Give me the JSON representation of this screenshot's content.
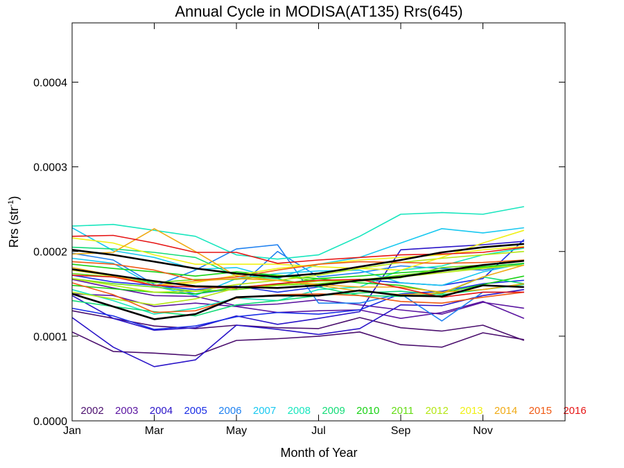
{
  "chart_data": {
    "type": "line",
    "title": "Annual Cycle in MODISA(AT135) Rrs(645)",
    "xlabel": "Month of Year",
    "ylabel_main": "Rrs (str",
    "ylabel_sup": "-1",
    "ylabel_close": ")",
    "xlim": [
      1,
      13
    ],
    "ylim": [
      0,
      0.00047
    ],
    "x_ticks": [
      {
        "value": 1,
        "label": "Jan"
      },
      {
        "value": 3,
        "label": "Mar"
      },
      {
        "value": 5,
        "label": "May"
      },
      {
        "value": 7,
        "label": "Jul"
      },
      {
        "value": 9,
        "label": "Sep"
      },
      {
        "value": 11,
        "label": "Nov"
      }
    ],
    "y_ticks": [
      {
        "value": 0.0,
        "label": "0.0000"
      },
      {
        "value": 0.0001,
        "label": "0.0001"
      },
      {
        "value": 0.0002,
        "label": "0.0002"
      },
      {
        "value": 0.0003,
        "label": "0.0003"
      },
      {
        "value": 0.0004,
        "label": "0.0004"
      }
    ],
    "grid": false,
    "legend_position": "bottom inside plot",
    "x": [
      1,
      2,
      3,
      4,
      5,
      6,
      7,
      8,
      9,
      10,
      11,
      12
    ],
    "series": [
      {
        "name": "2002",
        "color": "#4b0f6e",
        "lines": [
          [
            0.000105,
            8.2e-05,
            8e-05,
            7.7e-05,
            9.5e-05,
            9.7e-05,
            0.0001,
            0.000105,
            9e-05,
            8.7e-05,
            0.000104,
            9.6e-05
          ],
          [
            0.00013,
            0.000121,
            0.000112,
            0.000109,
            0.000113,
            0.00011,
            0.000109,
            0.000122,
            0.00011,
            0.000106,
            0.000113,
            9.5e-05
          ]
        ]
      },
      {
        "name": "2003",
        "color": "#5a14a0",
        "lines": [
          [
            0.00015,
            0.000148,
            0.000135,
            0.000139,
            0.000135,
            0.000128,
            0.00013,
            0.000131,
            0.000121,
            0.000128,
            0.000141,
            0.000121
          ],
          [
            0.000167,
            0.000157,
            0.000148,
            0.000147,
            0.000136,
            0.000138,
            0.000143,
            0.000137,
            0.000131,
            0.000126,
            0.00014,
            0.000133
          ]
        ]
      },
      {
        "name": "2004",
        "color": "#2a14c8",
        "lines": [
          [
            0.000122,
            8.7e-05,
            6.4e-05,
            7.2e-05,
            0.000113,
            0.000108,
            0.000102,
            0.000109,
            0.000137,
            0.000136,
            0.000148,
            0.000155
          ],
          [
            0.000148,
            0.000121,
            0.000107,
            0.00011,
            0.000124,
            0.000114,
            0.000121,
            0.000129,
            0.000202,
            0.000205,
            0.000208,
            0.000212
          ]
        ]
      },
      {
        "name": "2005",
        "color": "#1a2ee6",
        "lines": [
          [
            0.000133,
            0.000124,
            0.000108,
            0.000112,
            0.000123,
            0.000128,
            0.000126,
            0.000131,
            0.00015,
            0.000153,
            0.000162,
            0.000166
          ],
          [
            0.000172,
            0.000164,
            0.00016,
            0.000155,
            0.000159,
            0.000152,
            0.000158,
            0.000167,
            0.000163,
            0.00016,
            0.000168,
            0.000214
          ]
        ]
      },
      {
        "name": "2006",
        "color": "#1e80f0",
        "lines": [
          [
            0.000178,
            0.000172,
            0.000159,
            0.000178,
            0.000203,
            0.000208,
            0.000139,
            0.000139,
            0.00015,
            0.000118,
            0.000152,
            0.000152
          ],
          [
            0.000198,
            0.00019,
            0.000161,
            0.00015,
            0.000156,
            0.0002,
            0.00017,
            0.000175,
            0.000183,
            0.00018,
            0.000178,
            0.000186
          ]
        ]
      },
      {
        "name": "2007",
        "color": "#18c8f0",
        "lines": [
          [
            0.000228,
            0.000201,
            0.000193,
            0.000179,
            0.000181,
            0.000168,
            0.000185,
            0.000193,
            0.00021,
            0.000227,
            0.000222,
            0.000228
          ],
          [
            0.000192,
            0.000186,
            0.000159,
            0.000148,
            0.000168,
            0.000174,
            0.000177,
            0.000178,
            0.000163,
            0.00016,
            0.000176,
            0.000186
          ]
        ]
      },
      {
        "name": "2008",
        "color": "#18e6be",
        "lines": [
          [
            0.00023,
            0.000232,
            0.000225,
            0.000218,
            0.000196,
            0.000191,
            0.000196,
            0.000218,
            0.000244,
            0.000246,
            0.000244,
            0.000253
          ],
          [
            0.000155,
            0.000142,
            0.000126,
            0.000133,
            0.000145,
            0.000142,
            0.000155,
            0.000158,
            0.000178,
            0.000183,
            0.000196,
            0.000204
          ]
        ]
      },
      {
        "name": "2009",
        "color": "#14dc78",
        "lines": [
          [
            0.000205,
            0.000203,
            0.000199,
            0.000193,
            0.000171,
            0.000168,
            0.000158,
            0.000148,
            0.000147,
            0.00015,
            0.00017,
            0.000162
          ],
          [
            0.000142,
            0.000135,
            0.000129,
            0.000124,
            0.000137,
            0.000142,
            0.000148,
            0.000151,
            0.000153,
            0.000149,
            0.000155,
            0.000161
          ]
        ]
      },
      {
        "name": "2010",
        "color": "#18d214",
        "lines": [
          [
            0.000185,
            0.00018,
            0.000176,
            0.000171,
            0.000176,
            0.000172,
            0.000168,
            0.000163,
            0.00016,
            0.000151,
            0.000161,
            0.000171
          ],
          [
            0.00016,
            0.000156,
            0.000152,
            0.00015,
            0.000158,
            0.000161,
            0.000168,
            0.000171,
            0.000175,
            0.000178,
            0.000182,
            0.000186
          ]
        ]
      },
      {
        "name": "2011",
        "color": "#64dc14",
        "lines": [
          [
            0.000174,
            0.00017,
            0.000163,
            0.000167,
            0.000167,
            0.000172,
            0.000165,
            0.000165,
            0.000169,
            0.000181,
            0.000184,
            0.00019
          ],
          [
            0.000168,
            0.000162,
            0.000158,
            0.000153,
            0.000155,
            0.00016,
            0.000162,
            0.000166,
            0.000172,
            0.000177,
            0.000181,
            0.000184
          ]
        ]
      },
      {
        "name": "2012",
        "color": "#b4e614",
        "lines": [
          [
            0.000152,
            0.000144,
            0.000137,
            0.000144,
            0.000157,
            0.00016,
            0.000165,
            0.000167,
            0.00017,
            0.000175,
            0.00018,
            0.000184
          ],
          [
            0.000168,
            0.00016,
            0.000152,
            0.000153,
            0.000161,
            0.000166,
            0.000172,
            0.00018,
            0.000187,
            0.000192,
            0.000196,
            0.0002
          ]
        ]
      },
      {
        "name": "2013",
        "color": "#f0f014",
        "lines": [
          [
            0.000216,
            0.00021,
            0.000196,
            0.000185,
            0.000185,
            0.000185,
            0.000182,
            0.00018,
            0.000178,
            0.000193,
            0.00021,
            0.000225
          ],
          [
            0.000178,
            0.000171,
            0.00016,
            0.000163,
            0.000172,
            0.00018,
            0.000185,
            0.00019,
            0.000193,
            0.000196,
            0.000202,
            0.000206
          ]
        ]
      },
      {
        "name": "2014",
        "color": "#f0aa14",
        "lines": [
          [
            0.000197,
            0.000199,
            0.000227,
            0.0002,
            0.000171,
            0.000166,
            0.000161,
            0.000158,
            0.000158,
            0.000152,
            0.000155,
            0.000162
          ],
          [
            0.000181,
            0.000172,
            0.00016,
            0.000165,
            0.000168,
            0.000166,
            0.00016,
            0.000153,
            0.000149,
            0.000151,
            0.00017,
            0.000184
          ]
        ]
      },
      {
        "name": "2015",
        "color": "#f05a14",
        "lines": [
          [
            0.000163,
            0.000149,
            0.000128,
            0.00013,
            0.000145,
            0.000149,
            0.00015,
            0.000148,
            0.000141,
            0.000139,
            0.000146,
            0.000152
          ],
          [
            0.000188,
            0.000185,
            0.000178,
            0.000166,
            0.00017,
            0.000178,
            0.000185,
            0.000188,
            0.000187,
            0.000186,
            0.000187,
            0.00019
          ]
        ]
      },
      {
        "name": "2016",
        "color": "#e61414",
        "lines": [
          [
            0.000218,
            0.000219,
            0.00021,
            0.000199,
            0.000199,
            0.000186,
            0.00019,
            0.000193,
            0.000196,
            0.000197,
            0.000199,
            0.000205
          ],
          [
            0.000172,
            0.00017,
            0.00016,
            0.000158,
            0.000157,
            0.000162,
            0.000166,
            0.000167,
            0.000157,
            0.000146,
            0.000152,
            0.000152
          ]
        ]
      }
    ],
    "mean_lines": [
      [
        0.000202,
        0.000196,
        0.000188,
        0.00018,
        0.000174,
        0.00017,
        0.000174,
        0.000182,
        0.00019,
        0.000199,
        0.000205,
        0.000209
      ],
      [
        0.000179,
        0.000172,
        0.000165,
        0.000159,
        0.000158,
        0.000157,
        0.00016,
        0.000166,
        0.00017,
        0.000177,
        0.000184,
        0.000189
      ],
      [
        0.00015,
        0.000135,
        0.00012,
        0.000126,
        0.000146,
        0.000148,
        0.000148,
        0.000154,
        0.000148,
        0.000147,
        0.00016,
        0.000158
      ]
    ],
    "mean_color": "#000000"
  }
}
